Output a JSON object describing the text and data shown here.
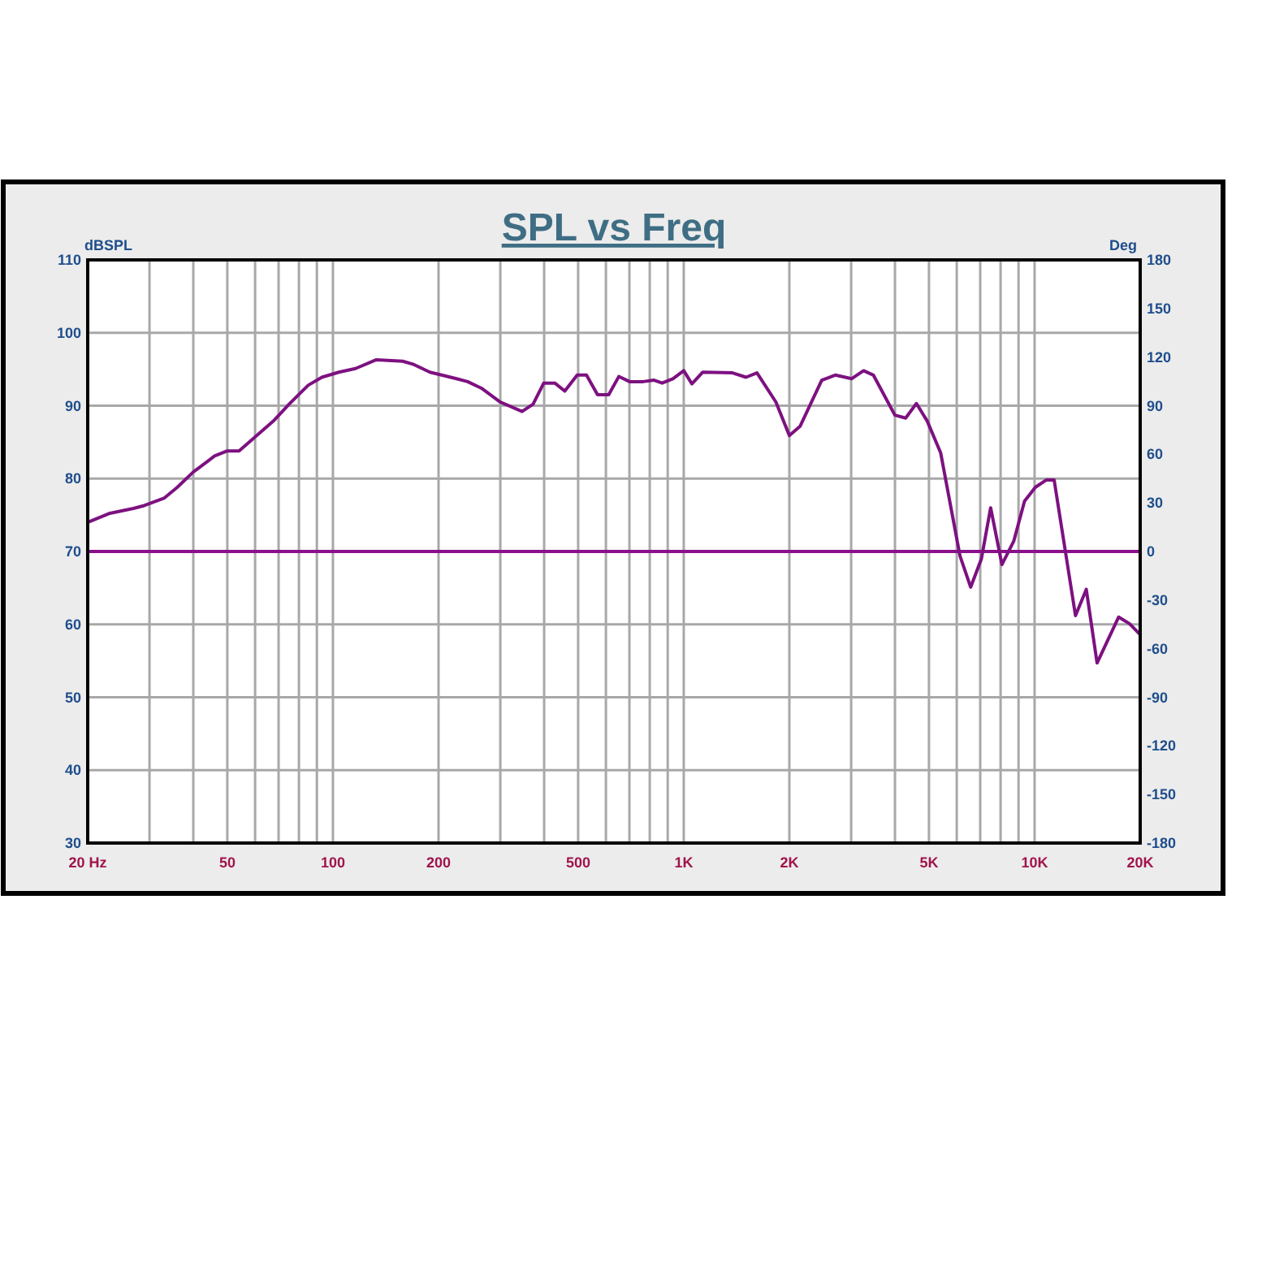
{
  "chart_data": {
    "type": "line",
    "title": "SPL vs Freq",
    "ylabel": "dBSPL",
    "y2label": "Deg",
    "log": "x",
    "grid": true,
    "marker": "none",
    "line_style": "solid",
    "xlim": [
      20,
      20000
    ],
    "ylim": [
      30,
      110
    ],
    "y2lim": [
      -180,
      180
    ],
    "xticks": [
      {
        "value": 20,
        "label": "20 Hz"
      },
      {
        "value": 30,
        "label": null
      },
      {
        "value": 40,
        "label": null
      },
      50,
      {
        "value": 60,
        "label": null
      },
      {
        "value": 70,
        "label": null
      },
      {
        "value": 80,
        "label": null
      },
      {
        "value": 90,
        "label": null
      },
      100,
      200,
      {
        "value": 300,
        "label": null
      },
      {
        "value": 400,
        "label": null
      },
      500,
      {
        "value": 600,
        "label": null
      },
      {
        "value": 700,
        "label": null
      },
      {
        "value": 800,
        "label": null
      },
      {
        "value": 900,
        "label": null
      },
      {
        "value": 1000,
        "label": "1K"
      },
      {
        "value": 2000,
        "label": "2K"
      },
      {
        "value": 3000,
        "label": null
      },
      {
        "value": 4000,
        "label": null
      },
      {
        "value": 5000,
        "label": "5K"
      },
      {
        "value": 6000,
        "label": null
      },
      {
        "value": 7000,
        "label": null
      },
      {
        "value": 8000,
        "label": null
      },
      {
        "value": 9000,
        "label": null
      },
      {
        "value": 10000,
        "label": "10K"
      },
      {
        "value": 20000,
        "label": "20K"
      }
    ],
    "yticks": [
      30,
      40,
      50,
      60,
      70,
      80,
      90,
      100,
      110
    ],
    "y2ticks": [
      -180,
      -150,
      -120,
      -90,
      -60,
      -30,
      0,
      30,
      60,
      90,
      120,
      150,
      180
    ],
    "ref_lines": [
      {
        "axis": "y2",
        "value": 0,
        "color": "#8b108b"
      }
    ],
    "series": [
      {
        "color": "#7d1180",
        "x": [
          20,
          23,
          27,
          29,
          33,
          36,
          40,
          46,
          50,
          54,
          60,
          68,
          75,
          85,
          93,
          104,
          116,
          133,
          158,
          169,
          189,
          225,
          242,
          265,
          300,
          346,
          372,
          399,
          429,
          458,
          497,
          528,
          568,
          611,
          653,
          701,
          766,
          823,
          868,
          931,
          1000,
          1055,
          1133,
          1377,
          1505,
          1617,
          1831,
          2000,
          2147,
          2474,
          2703,
          3008,
          3255,
          3471,
          3998,
          4290,
          4605,
          4942,
          5401,
          6128,
          6573,
          7055,
          7495,
          8071,
          8720,
          9362,
          10048,
          10786,
          11370,
          13080,
          14040,
          15070,
          17360,
          18640,
          20000
        ],
        "values": [
          74.0,
          75.2,
          75.9,
          76.3,
          77.3,
          78.8,
          80.9,
          83.1,
          83.8,
          83.8,
          85.7,
          88.0,
          90.2,
          92.8,
          93.9,
          94.6,
          95.1,
          96.3,
          96.1,
          95.7,
          94.6,
          93.7,
          93.3,
          92.4,
          90.5,
          89.2,
          90.2,
          93.1,
          93.1,
          92.0,
          94.2,
          94.2,
          91.5,
          91.5,
          94.0,
          93.3,
          93.3,
          93.5,
          93.1,
          93.7,
          94.8,
          93.0,
          94.6,
          94.5,
          93.9,
          94.5,
          90.5,
          85.9,
          87.2,
          93.5,
          94.2,
          93.7,
          94.8,
          94.2,
          88.7,
          88.3,
          90.3,
          87.9,
          83.5,
          69.4,
          65.1,
          69.0,
          76.0,
          68.2,
          71.4,
          76.9,
          78.8,
          79.8,
          79.8,
          61.2,
          64.8,
          54.7,
          61.0,
          60.1,
          58.6
        ]
      }
    ]
  }
}
